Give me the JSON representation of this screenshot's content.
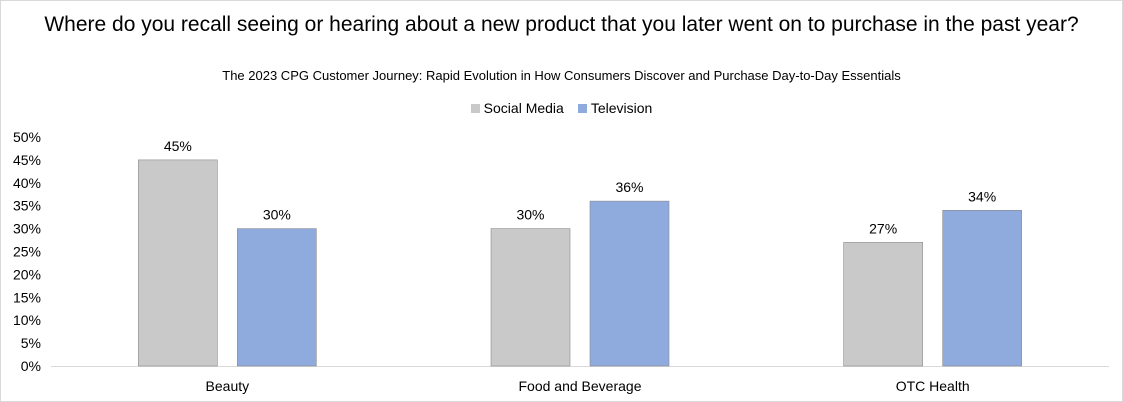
{
  "chart_data": {
    "type": "bar",
    "title": "Where do you recall seeing or hearing about a new product that you later went on to purchase in the past year?",
    "subtitle": "The 2023 CPG Customer Journey: Rapid Evolution in How Consumers Discover and Purchase Day-to-Day Essentials",
    "categories": [
      "Beauty",
      "Food and Beverage",
      "OTC Health"
    ],
    "series": [
      {
        "name": "Social Media",
        "color": "#c9c9c9",
        "values": [
          45,
          30,
          27
        ],
        "labels": [
          "45%",
          "30%",
          "27%"
        ]
      },
      {
        "name": "Television",
        "color": "#8faadc",
        "values": [
          30,
          36,
          34
        ],
        "labels": [
          "30%",
          "36%",
          "34%"
        ]
      }
    ],
    "ylim": [
      0,
      50
    ],
    "yticks": [
      "0%",
      "5%",
      "10%",
      "15%",
      "20%",
      "25%",
      "30%",
      "35%",
      "40%",
      "45%",
      "50%"
    ],
    "legend_position": "top",
    "grid": false
  }
}
